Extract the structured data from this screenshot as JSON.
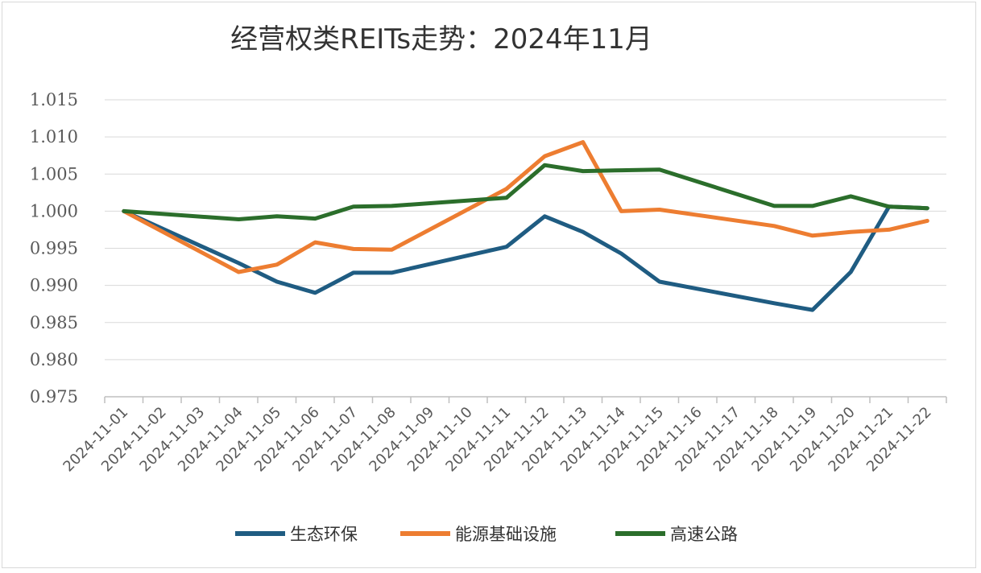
{
  "chart_data": {
    "type": "line",
    "title": "经营权类REITs走势：2024年11月",
    "xlabel": "",
    "ylabel": "",
    "ylim": [
      0.975,
      1.015
    ],
    "yticks": [
      "1.015",
      "1.010",
      "1.005",
      "1.000",
      "0.995",
      "0.990",
      "0.985",
      "0.980",
      "0.975"
    ],
    "ytick_values": [
      1.015,
      1.01,
      1.005,
      1.0,
      0.995,
      0.99,
      0.985,
      0.98,
      0.975
    ],
    "grid": true,
    "legend_position": "bottom",
    "categories": [
      "2024-11-01",
      "2024-11-02",
      "2024-11-03",
      "2024-11-04",
      "2024-11-05",
      "2024-11-06",
      "2024-11-07",
      "2024-11-08",
      "2024-11-09",
      "2024-11-10",
      "2024-11-11",
      "2024-11-12",
      "2024-11-13",
      "2024-11-14",
      "2024-11-15",
      "2024-11-16",
      "2024-11-17",
      "2024-11-18",
      "2024-11-19",
      "2024-11-20",
      "2024-11-21",
      "2024-11-22"
    ],
    "series": [
      {
        "name": "生态环保",
        "color": "#1f5c82",
        "points": [
          [
            "2024-11-01",
            1.0
          ],
          [
            "2024-11-04",
            0.993
          ],
          [
            "2024-11-05",
            0.9905
          ],
          [
            "2024-11-06",
            0.989
          ],
          [
            "2024-11-07",
            0.9917
          ],
          [
            "2024-11-08",
            0.9917
          ],
          [
            "2024-11-11",
            0.9952
          ],
          [
            "2024-11-12",
            0.9993
          ],
          [
            "2024-11-13",
            0.9972
          ],
          [
            "2024-11-14",
            0.9943
          ],
          [
            "2024-11-15",
            0.9905
          ],
          [
            "2024-11-18",
            0.9876
          ],
          [
            "2024-11-19",
            0.9867
          ],
          [
            "2024-11-20",
            0.9918
          ],
          [
            "2024-11-21",
            1.0006
          ],
          [
            "2024-11-22",
            1.0004
          ]
        ]
      },
      {
        "name": "能源基础设施",
        "color": "#ed7d31",
        "points": [
          [
            "2024-11-01",
            1.0
          ],
          [
            "2024-11-04",
            0.9918
          ],
          [
            "2024-11-05",
            0.9928
          ],
          [
            "2024-11-06",
            0.9958
          ],
          [
            "2024-11-07",
            0.9949
          ],
          [
            "2024-11-08",
            0.9948
          ],
          [
            "2024-11-11",
            1.003
          ],
          [
            "2024-11-12",
            1.0074
          ],
          [
            "2024-11-13",
            1.0093
          ],
          [
            "2024-11-14",
            1.0
          ],
          [
            "2024-11-15",
            1.0002
          ],
          [
            "2024-11-18",
            0.998
          ],
          [
            "2024-11-19",
            0.9967
          ],
          [
            "2024-11-20",
            0.9972
          ],
          [
            "2024-11-21",
            0.9975
          ],
          [
            "2024-11-22",
            0.9987
          ]
        ]
      },
      {
        "name": "高速公路",
        "color": "#2b6e2b",
        "points": [
          [
            "2024-11-01",
            1.0
          ],
          [
            "2024-11-04",
            0.9989
          ],
          [
            "2024-11-05",
            0.9993
          ],
          [
            "2024-11-06",
            0.999
          ],
          [
            "2024-11-07",
            1.0006
          ],
          [
            "2024-11-08",
            1.0007
          ],
          [
            "2024-11-11",
            1.0018
          ],
          [
            "2024-11-12",
            1.0062
          ],
          [
            "2024-11-13",
            1.0054
          ],
          [
            "2024-11-14",
            1.0055
          ],
          [
            "2024-11-15",
            1.0056
          ],
          [
            "2024-11-18",
            1.0007
          ],
          [
            "2024-11-19",
            1.0007
          ],
          [
            "2024-11-20",
            1.002
          ],
          [
            "2024-11-21",
            1.0006
          ],
          [
            "2024-11-22",
            1.0004
          ]
        ]
      }
    ]
  }
}
